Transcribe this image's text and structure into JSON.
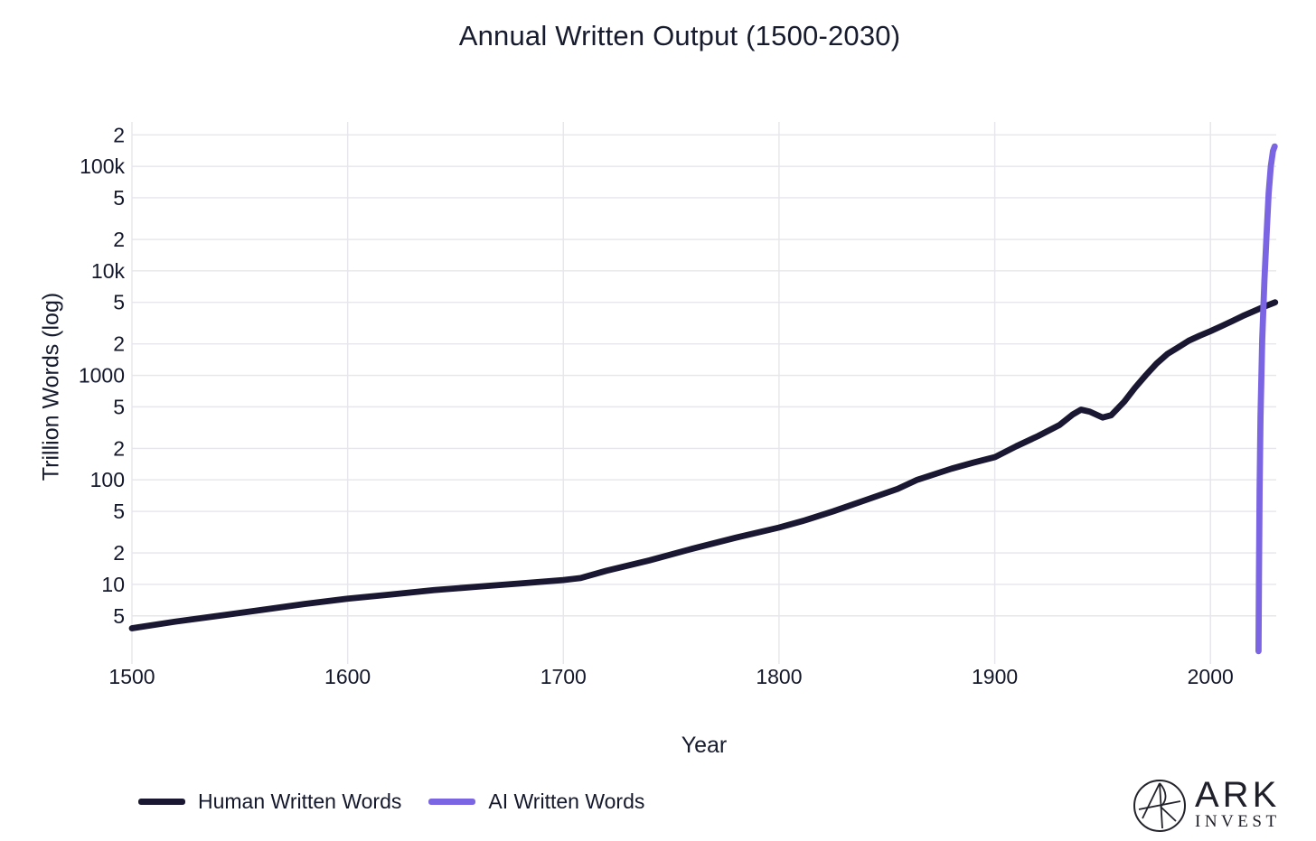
{
  "chart_data": {
    "type": "line",
    "title": "Annual Written Output (1500-2030)",
    "xlabel": "Year",
    "ylabel": "Trillion Words (log)",
    "y_scale": "log",
    "xlim": [
      1500,
      2030.5
    ],
    "ylim": [
      2.2,
      266000
    ],
    "grid": true,
    "background_color": "#ffffff",
    "grid_color": "#e6e6eb",
    "text_color": "#14182c",
    "legend_position": "bottom-left",
    "x_ticks": [
      1500,
      1600,
      1700,
      1800,
      1900,
      2000
    ],
    "y_ticks": [
      {
        "value": 5,
        "label": "5"
      },
      {
        "value": 10,
        "label": "10"
      },
      {
        "value": 20,
        "label": "2"
      },
      {
        "value": 50,
        "label": "5"
      },
      {
        "value": 100,
        "label": "100"
      },
      {
        "value": 200,
        "label": "2"
      },
      {
        "value": 500,
        "label": "5"
      },
      {
        "value": 1000,
        "label": "1000"
      },
      {
        "value": 2000,
        "label": "2"
      },
      {
        "value": 5000,
        "label": "5"
      },
      {
        "value": 10000,
        "label": "10k"
      },
      {
        "value": 20000,
        "label": "2"
      },
      {
        "value": 50000,
        "label": "5"
      },
      {
        "value": 100000,
        "label": "100k"
      },
      {
        "value": 200000,
        "label": "2"
      }
    ],
    "series": [
      {
        "name": "Human Written Words",
        "color": "#191731",
        "points": [
          [
            1500,
            3.8
          ],
          [
            1520,
            4.4
          ],
          [
            1540,
            5.0
          ],
          [
            1560,
            5.7
          ],
          [
            1580,
            6.5
          ],
          [
            1600,
            7.3
          ],
          [
            1620,
            8.0
          ],
          [
            1640,
            8.8
          ],
          [
            1660,
            9.5
          ],
          [
            1680,
            10.2
          ],
          [
            1700,
            11.0
          ],
          [
            1708,
            11.5
          ],
          [
            1720,
            13.5
          ],
          [
            1740,
            17
          ],
          [
            1760,
            22
          ],
          [
            1780,
            28
          ],
          [
            1800,
            35
          ],
          [
            1812,
            41
          ],
          [
            1825,
            50
          ],
          [
            1840,
            64
          ],
          [
            1855,
            82
          ],
          [
            1864,
            100
          ],
          [
            1880,
            128
          ],
          [
            1890,
            146
          ],
          [
            1900,
            165
          ],
          [
            1910,
            210
          ],
          [
            1920,
            262
          ],
          [
            1930,
            335
          ],
          [
            1936,
            420
          ],
          [
            1940,
            470
          ],
          [
            1944,
            450
          ],
          [
            1950,
            395
          ],
          [
            1954,
            415
          ],
          [
            1960,
            560
          ],
          [
            1965,
            760
          ],
          [
            1970,
            1000
          ],
          [
            1975,
            1300
          ],
          [
            1980,
            1600
          ],
          [
            1985,
            1850
          ],
          [
            1990,
            2150
          ],
          [
            1995,
            2400
          ],
          [
            2000,
            2650
          ],
          [
            2005,
            2950
          ],
          [
            2010,
            3300
          ],
          [
            2015,
            3700
          ],
          [
            2020,
            4100
          ],
          [
            2025,
            4550
          ],
          [
            2030,
            5000
          ]
        ]
      },
      {
        "name": "AI Written Words",
        "color": "#7b65e3",
        "points": [
          [
            2022.3,
            2.3
          ],
          [
            2022.5,
            12
          ],
          [
            2022.8,
            80
          ],
          [
            2023.2,
            400
          ],
          [
            2024,
            2200
          ],
          [
            2025,
            8000
          ],
          [
            2026,
            22000
          ],
          [
            2027,
            55000
          ],
          [
            2028,
            100000
          ],
          [
            2029,
            140000
          ],
          [
            2029.8,
            155000
          ]
        ]
      }
    ]
  },
  "branding": {
    "name": "ARK",
    "sub": "INVEST"
  }
}
